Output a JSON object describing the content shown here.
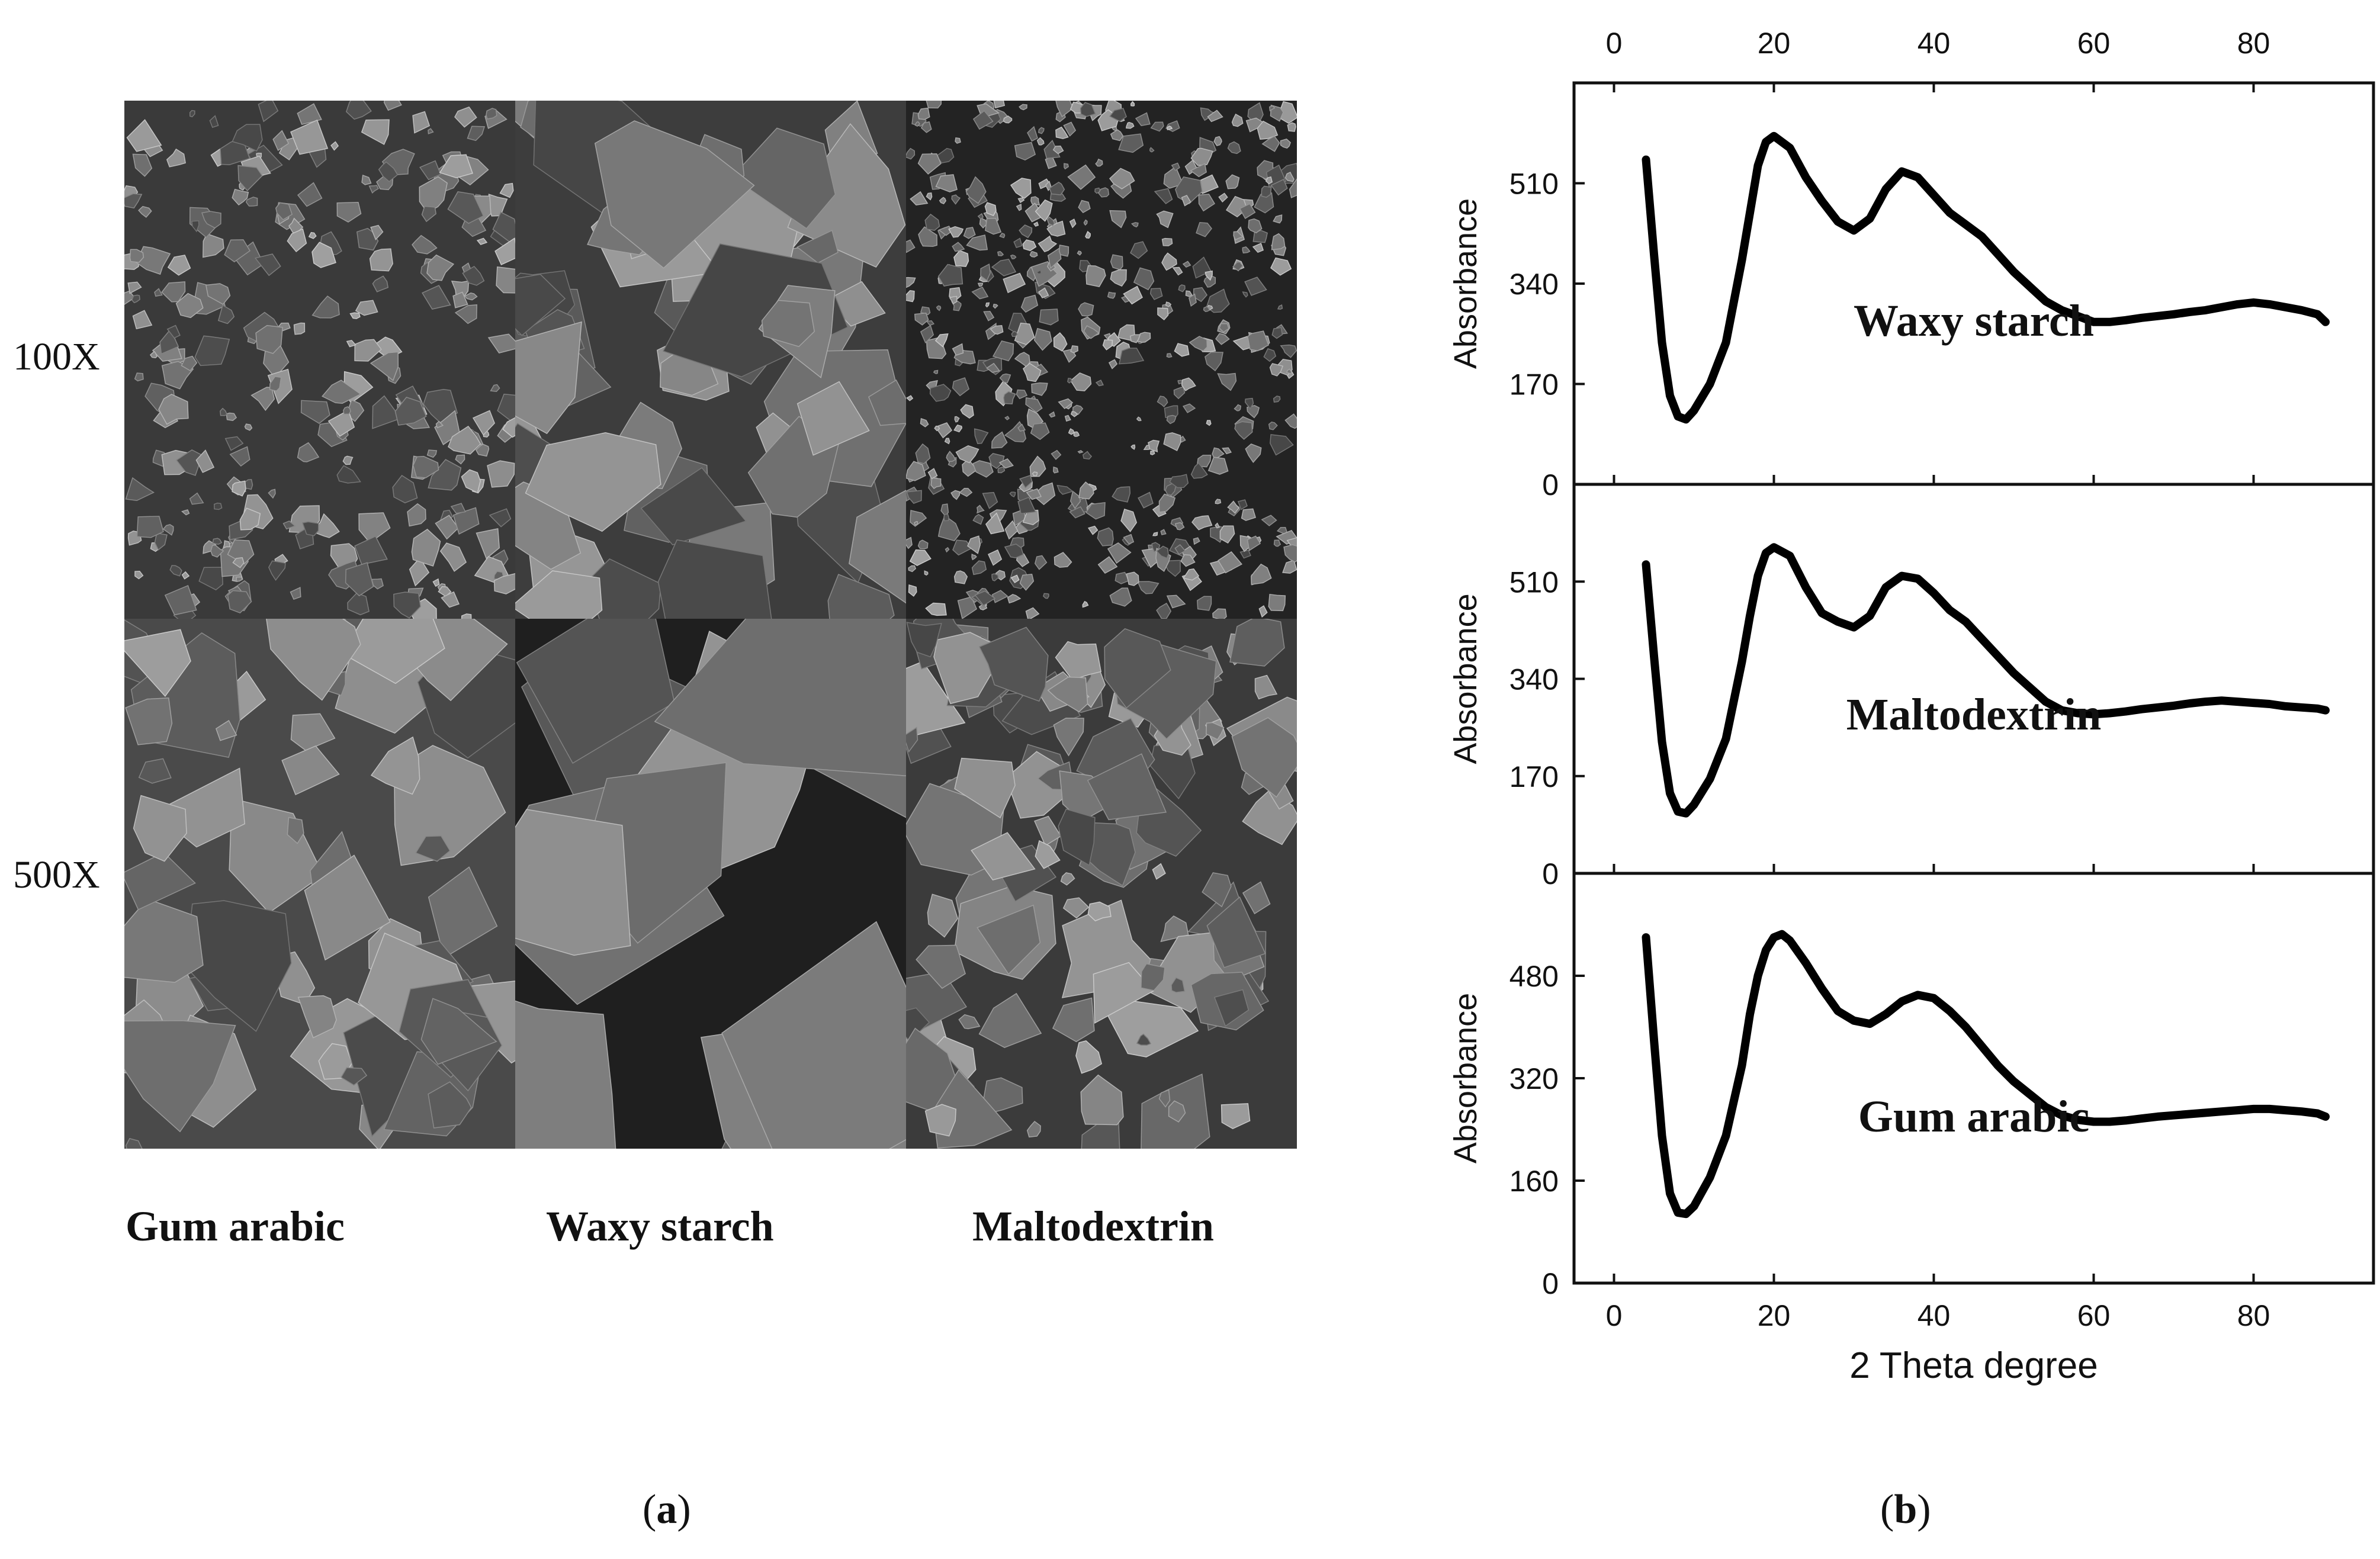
{
  "panel_a": {
    "letter": "a",
    "row_labels": [
      "100X",
      "500X"
    ],
    "column_labels": [
      "Gum arabic",
      "Waxy starch",
      "Maltodextrin"
    ]
  },
  "panel_b": {
    "letter": "b"
  },
  "chart_data": [
    {
      "type": "line",
      "annotation": "Waxy starch",
      "ylabel": "Absorbance",
      "xlabel": "",
      "xlim": [
        -5,
        95
      ],
      "ylim": [
        0,
        680
      ],
      "x_ticks": [
        0,
        20,
        40,
        60,
        80
      ],
      "y_ticks": [
        0,
        170,
        340,
        510
      ],
      "top_axis_ticks": [
        0,
        20,
        40,
        60,
        80
      ],
      "series": [
        {
          "x": [
            4,
            5,
            6,
            7,
            8,
            9,
            10,
            12,
            14,
            16,
            17,
            18,
            19,
            20,
            22,
            24,
            26,
            28,
            30,
            32,
            34,
            36,
            38,
            40,
            42,
            44,
            46,
            48,
            50,
            52,
            54,
            56,
            58,
            60,
            62,
            64,
            66,
            68,
            70,
            72,
            74,
            76,
            78,
            80,
            82,
            84,
            86,
            88,
            89
          ],
          "y": [
            550,
            390,
            240,
            150,
            115,
            110,
            125,
            170,
            240,
            380,
            460,
            540,
            580,
            590,
            570,
            520,
            480,
            445,
            430,
            450,
            500,
            530,
            520,
            490,
            460,
            440,
            420,
            390,
            360,
            335,
            310,
            295,
            285,
            275,
            275,
            278,
            282,
            285,
            288,
            292,
            295,
            300,
            305,
            308,
            305,
            300,
            295,
            288,
            275
          ]
        }
      ]
    },
    {
      "type": "line",
      "annotation": "Maltodextrin",
      "ylabel": "Absorbance",
      "xlabel": "",
      "xlim": [
        -5,
        95
      ],
      "ylim": [
        0,
        680
      ],
      "x_ticks": [
        0,
        20,
        40,
        60,
        80
      ],
      "y_ticks": [
        0,
        170,
        340,
        510
      ],
      "series": [
        {
          "x": [
            4,
            5,
            6,
            7,
            8,
            9,
            10,
            12,
            14,
            16,
            17,
            18,
            19,
            20,
            22,
            24,
            26,
            28,
            30,
            32,
            34,
            36,
            38,
            40,
            42,
            44,
            46,
            48,
            50,
            52,
            54,
            56,
            58,
            60,
            62,
            64,
            66,
            68,
            70,
            72,
            74,
            76,
            78,
            80,
            82,
            84,
            86,
            88,
            89
          ],
          "y": [
            540,
            380,
            230,
            140,
            108,
            105,
            120,
            165,
            235,
            370,
            450,
            520,
            560,
            570,
            555,
            500,
            455,
            440,
            430,
            450,
            500,
            520,
            515,
            490,
            460,
            440,
            410,
            380,
            350,
            325,
            300,
            285,
            280,
            278,
            280,
            283,
            287,
            290,
            293,
            297,
            300,
            302,
            300,
            298,
            296,
            292,
            290,
            288,
            285
          ]
        }
      ]
    },
    {
      "type": "line",
      "annotation": "Gum arabic",
      "ylabel": "Absorbance",
      "xlabel": "2 Theta degree",
      "xlim": [
        -5,
        95
      ],
      "ylim": [
        0,
        640
      ],
      "x_ticks": [
        0,
        20,
        40,
        60,
        80
      ],
      "y_ticks": [
        0,
        160,
        320,
        480
      ],
      "series": [
        {
          "x": [
            4,
            5,
            6,
            7,
            8,
            9,
            10,
            12,
            14,
            16,
            17,
            18,
            19,
            20,
            21,
            22,
            24,
            26,
            28,
            30,
            32,
            34,
            36,
            38,
            40,
            42,
            44,
            46,
            48,
            50,
            52,
            54,
            56,
            58,
            60,
            62,
            64,
            66,
            68,
            70,
            72,
            74,
            76,
            78,
            80,
            82,
            84,
            86,
            88,
            89
          ],
          "y": [
            540,
            380,
            230,
            140,
            110,
            108,
            120,
            165,
            230,
            340,
            420,
            480,
            520,
            540,
            545,
            535,
            500,
            460,
            425,
            410,
            405,
            420,
            440,
            450,
            445,
            425,
            400,
            370,
            340,
            315,
            295,
            275,
            262,
            255,
            252,
            252,
            254,
            257,
            260,
            262,
            264,
            266,
            268,
            270,
            272,
            272,
            270,
            268,
            265,
            260
          ]
        }
      ]
    }
  ]
}
